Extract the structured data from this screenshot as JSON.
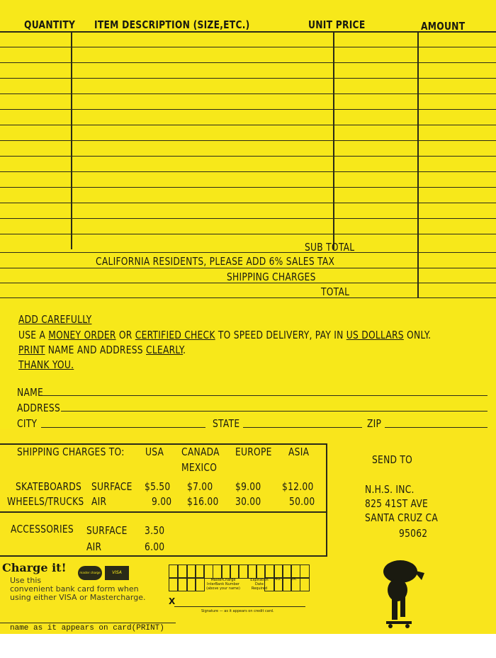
{
  "header": {
    "quantity": "QUANTITY",
    "description": "ITEM DESCRIPTION (SIZE,ETC.)",
    "unit_price": "UNIT PRICE",
    "amount": "AMOUNT"
  },
  "totals": {
    "sub_total": "SUB TOTAL",
    "tax_note": "CALIFORNIA RESIDENTS, PLEASE ADD 6% SALES TAX",
    "shipping": "SHIPPING CHARGES",
    "total": "TOTAL"
  },
  "instructions": {
    "l1": "ADD CAREFULLY",
    "l2a": "USE A ",
    "l2b": "MONEY ORDER",
    "l2c": " OR ",
    "l2d": "CERTIFIED CHECK",
    "l2e": " TO SPEED DELIVERY, PAY IN ",
    "l2f": "US DOLLARS",
    "l2g": " ONLY.",
    "l3a": "PRINT",
    "l3b": " NAME AND ADDRESS ",
    "l3c": "CLEARLY",
    "l3d": ".",
    "l4": "THANK YOU."
  },
  "address_fields": {
    "name": "NAME",
    "address": "ADDRESS",
    "city": "CITY",
    "state": "STATE",
    "zip": "ZIP"
  },
  "shipping_table": {
    "title": "SHIPPING CHARGES TO:",
    "cols": [
      "USA",
      "CANADA",
      "EUROPE",
      "ASIA"
    ],
    "canada_sub": "MEXICO",
    "row1": {
      "label": "SKATEBOARDS",
      "method": "SURFACE",
      "values": [
        "$5.50",
        "$7.00",
        "$9.00",
        "$12.00"
      ]
    },
    "row2": {
      "label": "WHEELS/TRUCKS",
      "method": "AIR",
      "values": [
        "9.00",
        "$16.00",
        "30.00",
        "50.00"
      ]
    },
    "accessories": {
      "label": "ACCESSORIES",
      "surface": "SURFACE",
      "surface_val": "3.50",
      "air": "AIR",
      "air_val": "6.00"
    }
  },
  "send_to": {
    "title": "SEND TO",
    "l1": "N.H.S.  INC.",
    "l2": "825  41ST AVE",
    "l3": "SANTA CRUZ CA",
    "l4": "95062"
  },
  "charge": {
    "title": "Charge it!",
    "l1": "Use this",
    "l2": "convenient bank card form when",
    "l3": "using either VISA or Mastercharge.",
    "mc_logo": "master charge",
    "visa_logo": "VISA",
    "card_label": "MasterCharge InterBank Number (above your name)",
    "exp_label": "Expiration Date Required",
    "mo": "MO.",
    "yr": "YR.",
    "x": "X",
    "sig": "Signature — as it appears on credit card.",
    "name_print": "name as it appears on card(PRINT)"
  }
}
